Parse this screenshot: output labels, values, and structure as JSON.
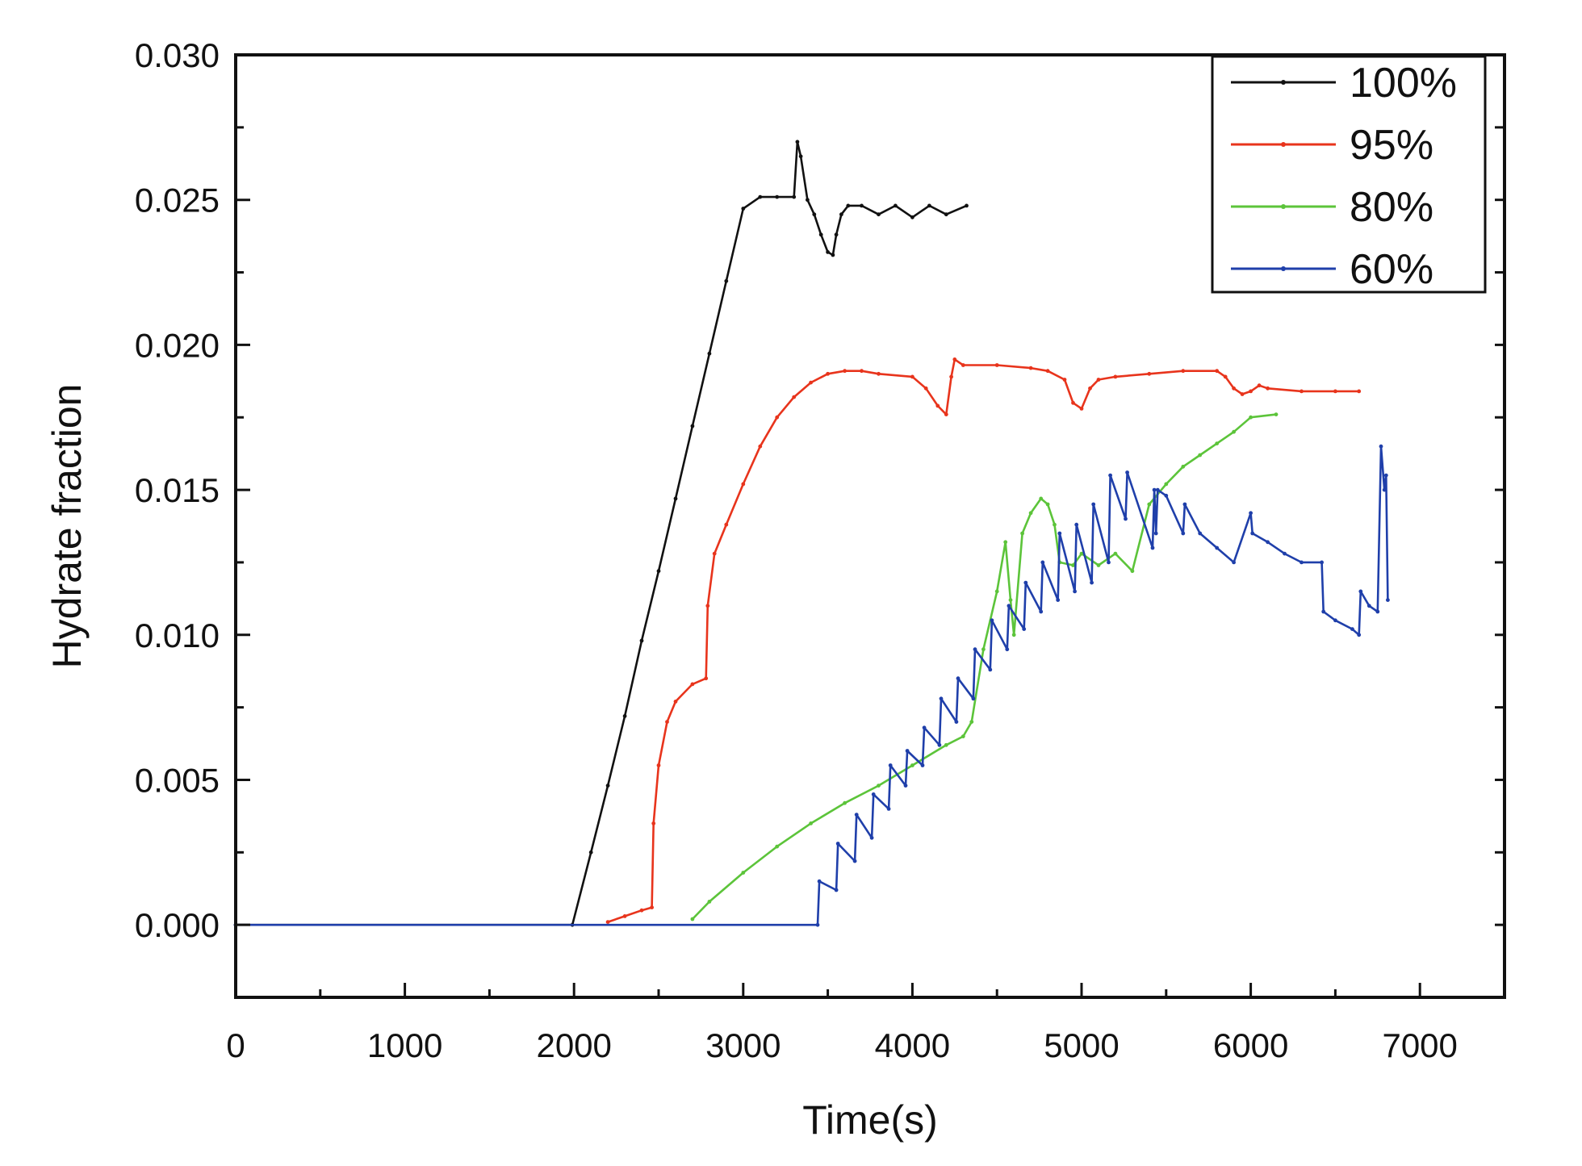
{
  "chart_data": {
    "type": "line",
    "title": "",
    "xlabel": "Time(s)",
    "ylabel": "Hydrate fraction",
    "xlim": [
      0,
      7500
    ],
    "ylim": [
      -0.0025,
      0.03
    ],
    "xticks": [
      0,
      1000,
      2000,
      3000,
      4000,
      5000,
      6000,
      7000
    ],
    "yticks": [
      0.0,
      0.005,
      0.01,
      0.015,
      0.02,
      0.025,
      0.03
    ],
    "xtick_labels": [
      "0",
      "1000",
      "2000",
      "3000",
      "4000",
      "5000",
      "6000",
      "7000"
    ],
    "ytick_labels": [
      "0.000",
      "0.005",
      "0.010",
      "0.015",
      "0.020",
      "0.025",
      "0.030"
    ],
    "grid": false,
    "legend_position": "top-right",
    "series": [
      {
        "name": "100%",
        "color": "#111111",
        "x": [
          0,
          1990,
          2100,
          2200,
          2300,
          2400,
          2500,
          2600,
          2700,
          2800,
          2900,
          3000,
          3100,
          3200,
          3300,
          3320,
          3340,
          3380,
          3420,
          3460,
          3500,
          3530,
          3550,
          3580,
          3620,
          3700,
          3800,
          3900,
          4000,
          4100,
          4200,
          4320
        ],
        "y": [
          0,
          0,
          0.0025,
          0.0048,
          0.0072,
          0.0098,
          0.0122,
          0.0147,
          0.0172,
          0.0197,
          0.0222,
          0.0247,
          0.0251,
          0.0251,
          0.0251,
          0.027,
          0.0265,
          0.025,
          0.0245,
          0.0238,
          0.0232,
          0.0231,
          0.0238,
          0.0245,
          0.0248,
          0.0248,
          0.0245,
          0.0248,
          0.0244,
          0.0248,
          0.0245,
          0.0248
        ]
      },
      {
        "name": "95%",
        "color": "#e8341c",
        "x": [
          2200,
          2300,
          2400,
          2460,
          2470,
          2500,
          2550,
          2600,
          2700,
          2780,
          2790,
          2830,
          2900,
          3000,
          3100,
          3200,
          3300,
          3400,
          3500,
          3600,
          3700,
          3800,
          4000,
          4080,
          4150,
          4200,
          4230,
          4250,
          4300,
          4500,
          4700,
          4800,
          4900,
          4950,
          5000,
          5050,
          5100,
          5200,
          5400,
          5600,
          5800,
          5850,
          5900,
          5950,
          6000,
          6050,
          6100,
          6300,
          6500,
          6640
        ],
        "y": [
          0.0001,
          0.0003,
          0.0005,
          0.0006,
          0.0035,
          0.0055,
          0.007,
          0.0077,
          0.0083,
          0.0085,
          0.011,
          0.0128,
          0.0138,
          0.0152,
          0.0165,
          0.0175,
          0.0182,
          0.0187,
          0.019,
          0.0191,
          0.0191,
          0.019,
          0.0189,
          0.0185,
          0.0179,
          0.0176,
          0.0189,
          0.0195,
          0.0193,
          0.0193,
          0.0192,
          0.0191,
          0.0188,
          0.018,
          0.0178,
          0.0185,
          0.0188,
          0.0189,
          0.019,
          0.0191,
          0.0191,
          0.0189,
          0.0185,
          0.0183,
          0.0184,
          0.0186,
          0.0185,
          0.0184,
          0.0184,
          0.0184
        ]
      },
      {
        "name": "80%",
        "color": "#5cc43a",
        "x": [
          2700,
          2800,
          3000,
          3200,
          3400,
          3600,
          3800,
          4000,
          4200,
          4300,
          4350,
          4420,
          4500,
          4550,
          4580,
          4600,
          4650,
          4700,
          4760,
          4800,
          4840,
          4870,
          4950,
          5000,
          5100,
          5200,
          5300,
          5400,
          5500,
          5600,
          5700,
          5800,
          5900,
          6000,
          6150
        ],
        "y": [
          0.0002,
          0.0008,
          0.0018,
          0.0027,
          0.0035,
          0.0042,
          0.0048,
          0.0055,
          0.0062,
          0.0065,
          0.007,
          0.0095,
          0.0115,
          0.0132,
          0.0112,
          0.01,
          0.0135,
          0.0142,
          0.0147,
          0.0145,
          0.0138,
          0.0125,
          0.0124,
          0.0128,
          0.0124,
          0.0128,
          0.0122,
          0.0145,
          0.0152,
          0.0158,
          0.0162,
          0.0166,
          0.017,
          0.0175,
          0.0176
        ]
      },
      {
        "name": "60%",
        "color": "#1f3faa",
        "x": [
          0,
          3440,
          3450,
          3550,
          3560,
          3660,
          3670,
          3760,
          3770,
          3860,
          3870,
          3960,
          3970,
          4060,
          4070,
          4160,
          4170,
          4260,
          4270,
          4360,
          4370,
          4460,
          4470,
          4560,
          4570,
          4660,
          4670,
          4760,
          4770,
          4860,
          4870,
          4960,
          4970,
          5060,
          5070,
          5160,
          5170,
          5260,
          5270,
          5420,
          5430,
          5440,
          5450,
          5500,
          5600,
          5610,
          5700,
          5800,
          5900,
          6000,
          6010,
          6100,
          6200,
          6300,
          6420,
          6430,
          6500,
          6600,
          6640,
          6650,
          6700,
          6750,
          6770,
          6790,
          6800,
          6810
        ],
        "y": [
          0,
          0,
          0.0015,
          0.0012,
          0.0028,
          0.0022,
          0.0038,
          0.003,
          0.0045,
          0.004,
          0.0055,
          0.0048,
          0.006,
          0.0055,
          0.0068,
          0.0062,
          0.0078,
          0.007,
          0.0085,
          0.0078,
          0.0095,
          0.0088,
          0.0105,
          0.0095,
          0.011,
          0.0102,
          0.0118,
          0.0108,
          0.0125,
          0.0112,
          0.0135,
          0.0115,
          0.0138,
          0.0118,
          0.0145,
          0.0125,
          0.0155,
          0.014,
          0.0156,
          0.013,
          0.015,
          0.0135,
          0.015,
          0.0148,
          0.0135,
          0.0145,
          0.0135,
          0.013,
          0.0125,
          0.0142,
          0.0135,
          0.0132,
          0.0128,
          0.0125,
          0.0125,
          0.0108,
          0.0105,
          0.0102,
          0.01,
          0.0115,
          0.011,
          0.0108,
          0.0165,
          0.015,
          0.0155,
          0.0112
        ]
      }
    ]
  }
}
